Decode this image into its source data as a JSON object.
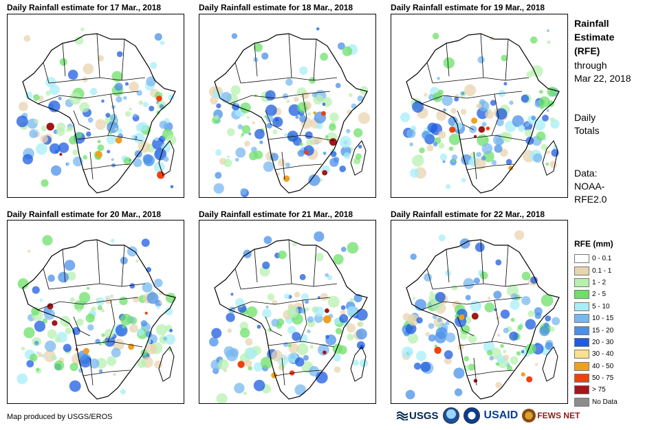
{
  "panels": [
    {
      "title": "Daily Rainfall estimate for 17 Mar., 2018"
    },
    {
      "title": "Daily Rainfall estimate for 18 Mar., 2018"
    },
    {
      "title": "Daily Rainfall estimate for 19 Mar., 2018"
    },
    {
      "title": "Daily Rainfall estimate for 20 Mar., 2018"
    },
    {
      "title": "Daily Rainfall estimate for 21 Mar., 2018"
    },
    {
      "title": "Daily Rainfall estimate for 22 Mar., 2018"
    }
  ],
  "sidebar": {
    "title_line1": "Rainfall",
    "title_line2": "Estimate",
    "title_line3": "(RFE)",
    "through": "through",
    "date": "Mar 22, 2018",
    "daily1": "Daily",
    "daily2": "Totals",
    "data1": "Data:",
    "data2": "NOAA-",
    "data3": "RFE2.0"
  },
  "legend": {
    "title": "RFE (mm)",
    "items": [
      {
        "label": "0 - 0.1",
        "color": "#ffffff"
      },
      {
        "label": "0.1 - 1",
        "color": "#e8d4b0"
      },
      {
        "label": "1 - 2",
        "color": "#b8f0b0"
      },
      {
        "label": "2 - 5",
        "color": "#6ee06a"
      },
      {
        "label": "5 - 10",
        "color": "#a8eef8"
      },
      {
        "label": "10 - 15",
        "color": "#78b8f0"
      },
      {
        "label": "15 - 20",
        "color": "#4a90e8"
      },
      {
        "label": "20 - 30",
        "color": "#1c5ce0"
      },
      {
        "label": "30 - 40",
        "color": "#f8e090"
      },
      {
        "label": "40 - 50",
        "color": "#f0a020"
      },
      {
        "label": "50 - 75",
        "color": "#f04010"
      },
      {
        "label": "> 75",
        "color": "#a01818"
      },
      {
        "label": "No Data",
        "color": "#8c8c8c"
      }
    ]
  },
  "footer": {
    "credit": "Map produced by USGS/EROS"
  },
  "logos": {
    "usgs": "USGS",
    "usaid": "USAID",
    "fews": "FEWS NET"
  }
}
